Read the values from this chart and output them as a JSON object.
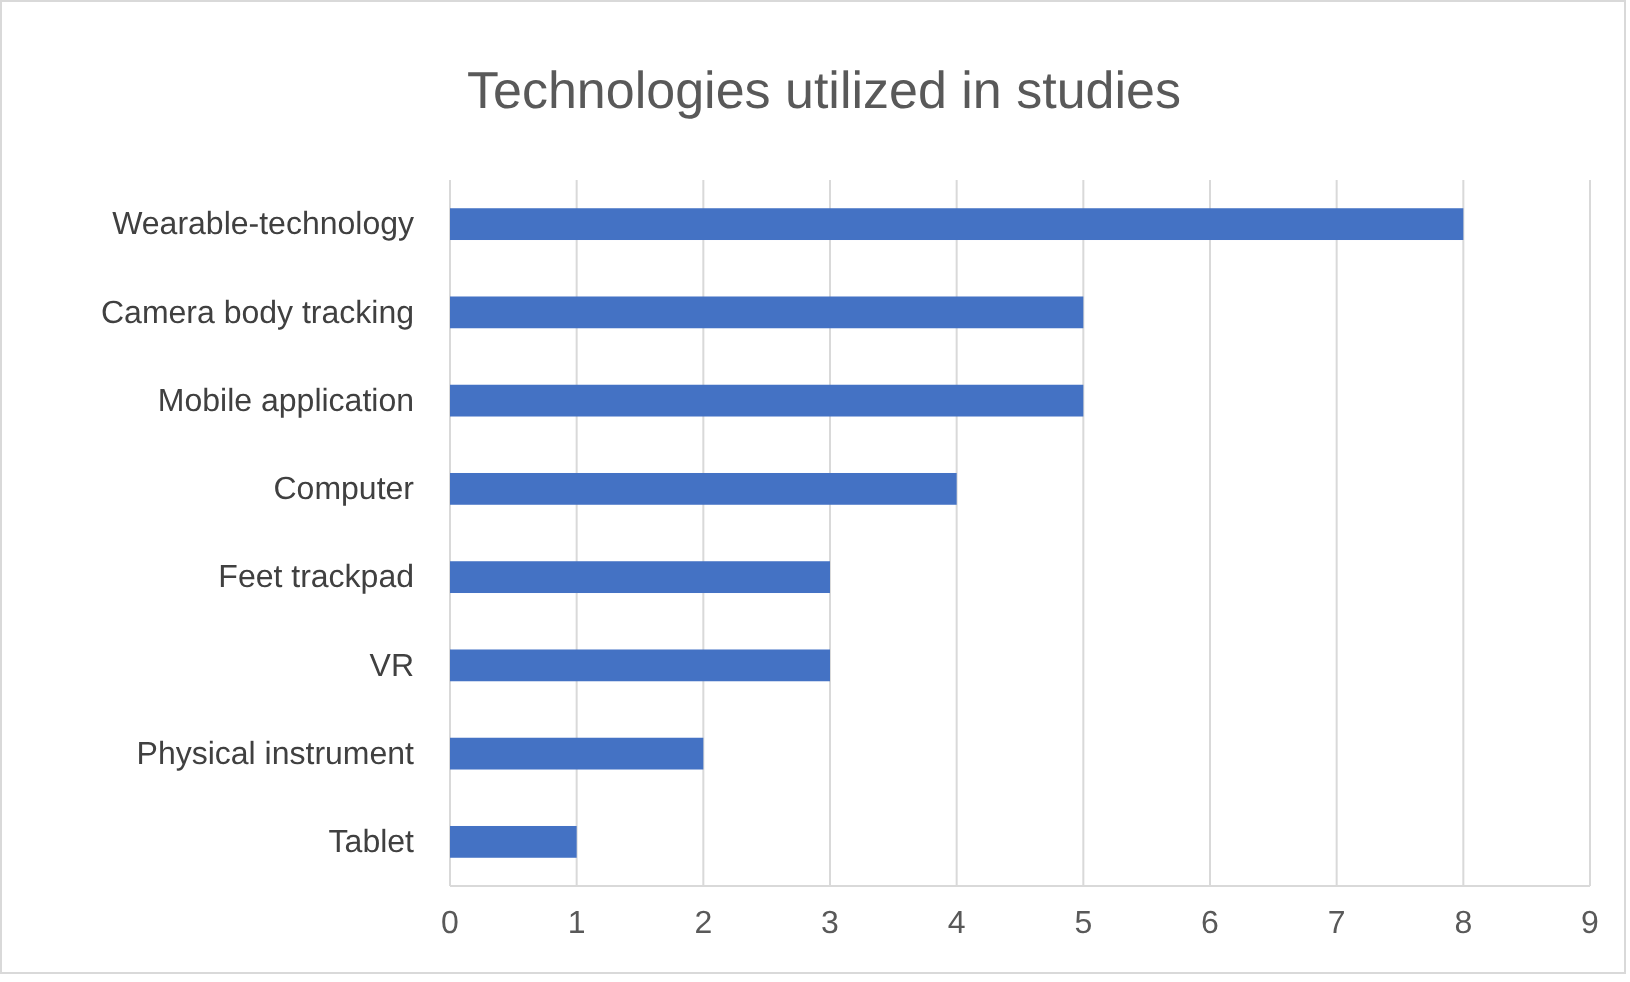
{
  "chart_data": {
    "type": "bar",
    "title": "Technologies utilized in studies",
    "orientation": "horizontal",
    "categories": [
      "Wearable-technology",
      "Camera body tracking",
      "Mobile application",
      "Computer",
      "Feet trackpad",
      "VR",
      "Physical instrument",
      "Tablet"
    ],
    "values": [
      8,
      5,
      5,
      4,
      3,
      3,
      2,
      1
    ],
    "color": "#4472c4",
    "xlim": [
      0,
      9
    ],
    "xticks": [
      0,
      1,
      2,
      3,
      4,
      5,
      6,
      7,
      8,
      9
    ],
    "grid": "x"
  }
}
